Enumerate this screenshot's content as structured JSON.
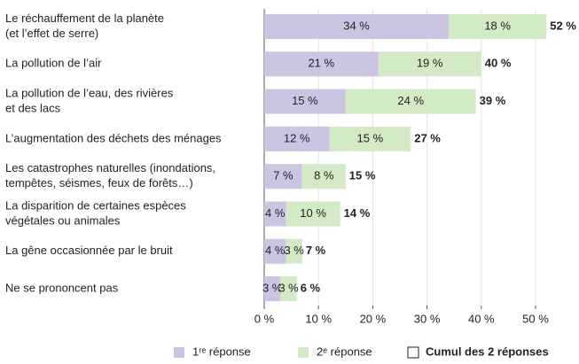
{
  "chart_data": {
    "type": "stacked-bar-horizontal",
    "categories": [
      [
        "Le réchauffement de la planète",
        "(et l’effet de serre)"
      ],
      [
        "La pollution de l’air"
      ],
      [
        "La pollution de l’eau, des rivières",
        "et des lacs"
      ],
      [
        "L’augmentation des déchets des ménages"
      ],
      [
        "Les catastrophes naturelles (inondations,",
        "tempêtes, séismes, feux de forêts…)"
      ],
      [
        "La disparition de certaines espèces",
        "végétales ou animales"
      ],
      [
        "La gêne occasionnée par le bruit"
      ],
      [
        "Ne se prononcent pas"
      ]
    ],
    "series": [
      {
        "name": "1ʳᵉ réponse",
        "color": "#cbc5e2",
        "values": [
          34,
          21,
          15,
          12,
          7,
          4,
          4,
          3
        ],
        "value_labels": [
          "34 %",
          "21 %",
          "15 %",
          "12 %",
          "7 %",
          "4 %",
          "4 %",
          "3 %"
        ]
      },
      {
        "name": "2ᵉ réponse",
        "color": "#d2eac6",
        "values": [
          18,
          19,
          24,
          15,
          8,
          10,
          3,
          3
        ],
        "value_labels": [
          "18 %",
          "19 %",
          "24 %",
          "15 %",
          "8 %",
          "10 %",
          "3 %",
          "3 %"
        ]
      }
    ],
    "totals": {
      "name": "Cumul des 2 réponses",
      "values": [
        52,
        40,
        39,
        27,
        15,
        14,
        7,
        6
      ],
      "value_labels": [
        "52 %",
        "40 %",
        "39 %",
        "27 %",
        "15 %",
        "14 %",
        "7 %",
        "6 %"
      ]
    },
    "xlim": [
      0,
      55
    ],
    "xticks": [
      {
        "value": 0,
        "label": "0 %"
      },
      {
        "value": 10,
        "label": "10 %"
      },
      {
        "value": 20,
        "label": "20 %"
      },
      {
        "value": 30,
        "label": "30 %"
      },
      {
        "value": 40,
        "label": "40 %"
      },
      {
        "value": 50,
        "label": "50 %"
      }
    ],
    "grid": true
  }
}
